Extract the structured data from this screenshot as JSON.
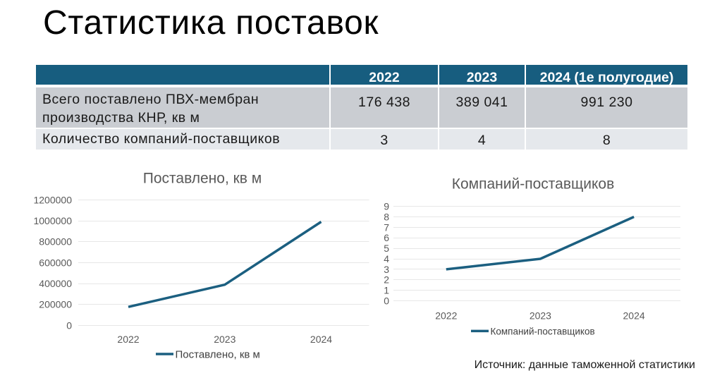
{
  "page": {
    "title": "Статистика поставок",
    "source_note": "Источник: данные таможенной статистики"
  },
  "colors": {
    "accent_teal": "#175d7f",
    "series_line": "#1b5f80",
    "table_header_bg": "#175d7f",
    "table_header_text": "#ffffff",
    "table_row1_bg": "#cacdd2",
    "table_row2_bg": "#e5e8ec",
    "grid_line": "#e7e7e7",
    "chart_text": "#595959",
    "legend_text": "#404040"
  },
  "table": {
    "columns": [
      "",
      "2022",
      "2023",
      "2024 (1е полугодие)"
    ],
    "rows": [
      {
        "label": "Всего поставлено ПВХ-мембран производства КНР, кв м",
        "values": [
          "176 438",
          "389 041",
          "991 230"
        ]
      },
      {
        "label": "Количество компаний-поставщиков",
        "values": [
          "3",
          "4",
          "8"
        ]
      }
    ]
  },
  "chart_data": [
    {
      "type": "line",
      "title": "Поставлено, кв м",
      "categories": [
        "2022",
        "2023",
        "2024"
      ],
      "series": [
        {
          "name": "Поставлено, кв м",
          "values": [
            176438,
            389041,
            991230
          ]
        }
      ],
      "ylim": [
        0,
        1200000
      ],
      "ytick_step": 200000,
      "grid": true,
      "legend_position": "bottom"
    },
    {
      "type": "line",
      "title": "Компаний-поставщиков",
      "categories": [
        "2022",
        "2023",
        "2024"
      ],
      "series": [
        {
          "name": "Компаний-поставщиков",
          "values": [
            3,
            4,
            8
          ]
        }
      ],
      "ylim": [
        0,
        9
      ],
      "ytick_step": 1,
      "grid": true,
      "legend_position": "bottom"
    }
  ]
}
